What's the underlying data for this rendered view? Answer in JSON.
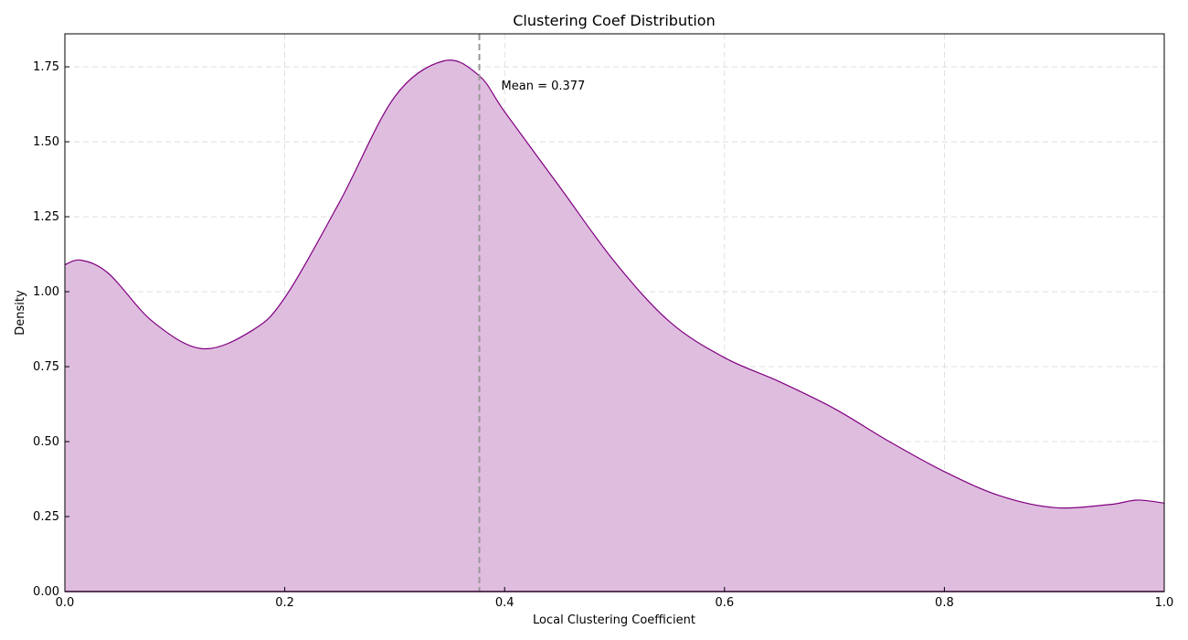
{
  "chart_data": {
    "type": "area",
    "title": "Clustering Coef Distribution",
    "xlabel": "Local Clustering Coefficient",
    "ylabel": "Density",
    "xlim": [
      0,
      1
    ],
    "ylim": [
      0,
      1.86
    ],
    "x_ticks": [
      0.0,
      0.2,
      0.4,
      0.6,
      0.8,
      1.0
    ],
    "x_tick_labels": [
      "0.0",
      "0.2",
      "0.4",
      "0.6",
      "0.8",
      "1.0"
    ],
    "y_ticks": [
      0.0,
      0.25,
      0.5,
      0.75,
      1.0,
      1.25,
      1.5,
      1.75
    ],
    "y_tick_labels": [
      "0.00",
      "0.25",
      "0.50",
      "0.75",
      "1.00",
      "1.25",
      "1.50",
      "1.75"
    ],
    "grid": true,
    "series": [
      {
        "x": [
          0.0,
          0.015,
          0.04,
          0.08,
          0.125,
          0.17,
          0.2,
          0.25,
          0.3,
          0.345,
          0.377,
          0.4,
          0.45,
          0.5,
          0.55,
          0.6,
          0.65,
          0.7,
          0.75,
          0.8,
          0.85,
          0.9,
          0.95,
          0.975,
          1.0
        ],
        "y": [
          1.09,
          1.105,
          1.06,
          0.9,
          0.81,
          0.87,
          0.98,
          1.3,
          1.65,
          1.77,
          1.72,
          1.6,
          1.35,
          1.1,
          0.9,
          0.78,
          0.7,
          0.61,
          0.5,
          0.4,
          0.32,
          0.28,
          0.29,
          0.305,
          0.295
        ]
      }
    ],
    "mean_line": {
      "x": 0.377,
      "label": "Mean = 0.377"
    },
    "colors": {
      "fill": "#dfbddf",
      "line": "#800080",
      "mean_line": "#999999"
    }
  }
}
